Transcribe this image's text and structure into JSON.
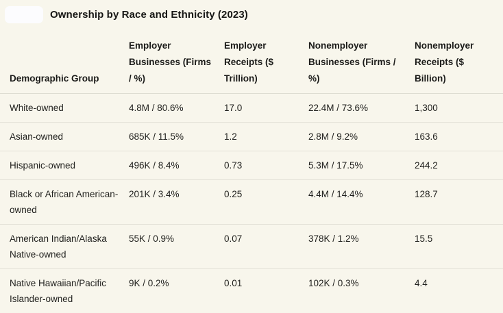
{
  "header": {
    "highlight_chip": "blank-highlight"
  },
  "colors": {
    "background": "#f8f6ec",
    "text": "#1d1d1b",
    "divider": "#e2e0d6",
    "chip": "#fcfcfe"
  },
  "chart_data": {
    "type": "table",
    "title": "Ownership by Race and Ethnicity (2023)",
    "columns": [
      "Demographic Group",
      "Employer Businesses (Firms / %)",
      "Employer Receipts ($ Trillion)",
      "Nonemployer Businesses (Firms / %)",
      "Nonemployer Receipts ($ Billion)"
    ],
    "rows": [
      [
        "White-owned",
        "4.8M / 80.6%",
        "17.0",
        "22.4M / 73.6%",
        "1,300"
      ],
      [
        "Asian-owned",
        "685K / 11.5%",
        "1.2",
        "2.8M / 9.2%",
        "163.6"
      ],
      [
        "Hispanic-owned",
        "496K / 8.4%",
        "0.73",
        "5.3M / 17.5%",
        "244.2"
      ],
      [
        "Black or African American-owned",
        "201K / 3.4%",
        "0.25",
        "4.4M / 14.4%",
        "128.7"
      ],
      [
        "American Indian/Alaska Native-owned",
        "55K / 0.9%",
        "0.07",
        "378K / 1.2%",
        "15.5"
      ],
      [
        "Native Hawaiian/Pacific Islander-owned",
        "9K / 0.2%",
        "0.01",
        "102K / 0.3%",
        "4.4"
      ]
    ]
  }
}
